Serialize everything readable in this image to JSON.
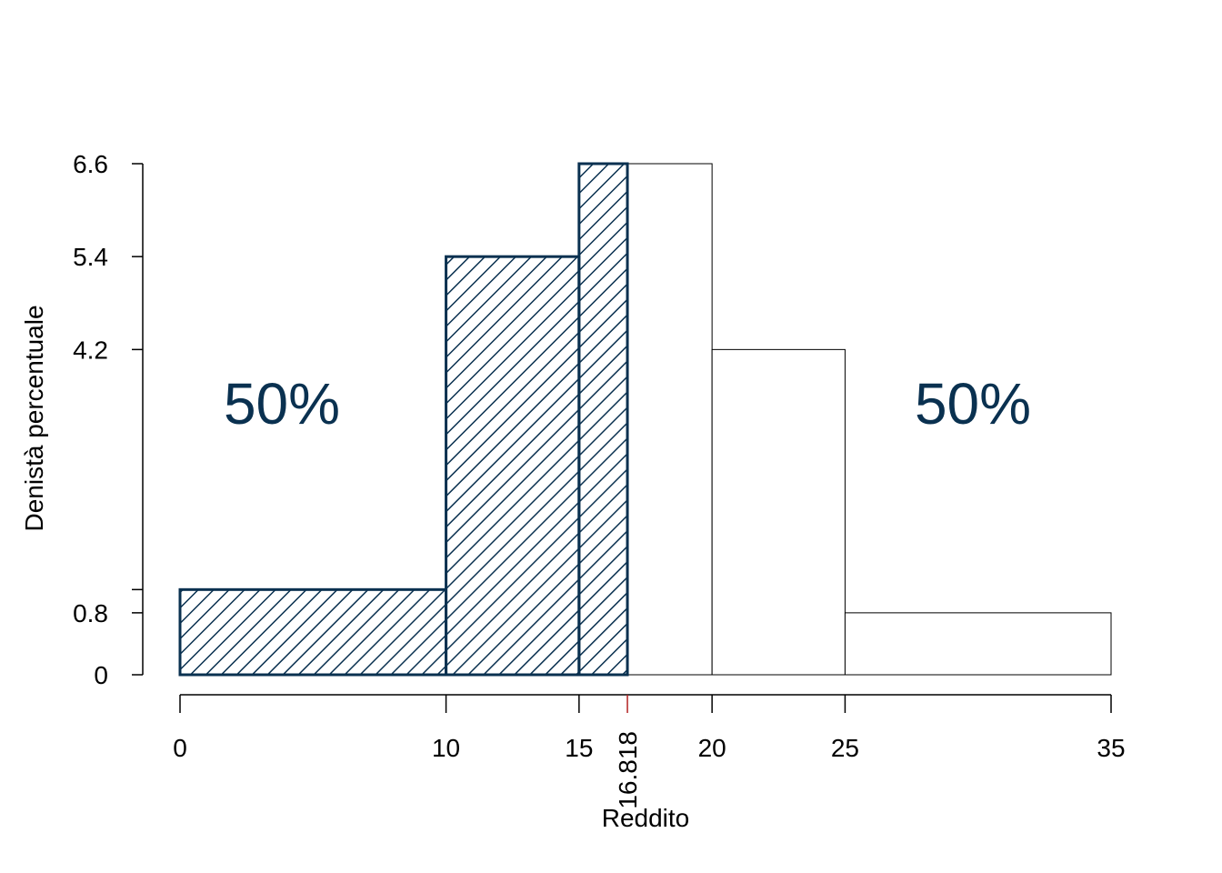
{
  "chart_data": {
    "type": "bar",
    "subtype": "histogram",
    "title": "",
    "xlabel": "Reddito",
    "ylabel": "Denistà percentuale",
    "xlim": [
      0,
      35
    ],
    "ylim": [
      0,
      6.6
    ],
    "x_ticks": [
      "0",
      "10",
      "15",
      "20",
      "25",
      "35"
    ],
    "y_ticks": [
      "0",
      "0.8",
      "4.2",
      "5.4",
      "6.6"
    ],
    "extra_y_tick": 1.1,
    "bins": [
      {
        "from": 0,
        "to": 10,
        "density": 1.1
      },
      {
        "from": 10,
        "to": 15,
        "density": 5.4
      },
      {
        "from": 15,
        "to": 20,
        "density": 6.6
      },
      {
        "from": 20,
        "to": 25,
        "density": 4.2
      },
      {
        "from": 25,
        "to": 35,
        "density": 0.8
      }
    ],
    "median": {
      "value": 16.818,
      "label": "16.818",
      "color": "#B22222"
    },
    "regions": [
      {
        "label": "50%",
        "side": "left"
      },
      {
        "label": "50%",
        "side": "right"
      }
    ],
    "hatch_color": "#0A3150",
    "grid": false
  }
}
